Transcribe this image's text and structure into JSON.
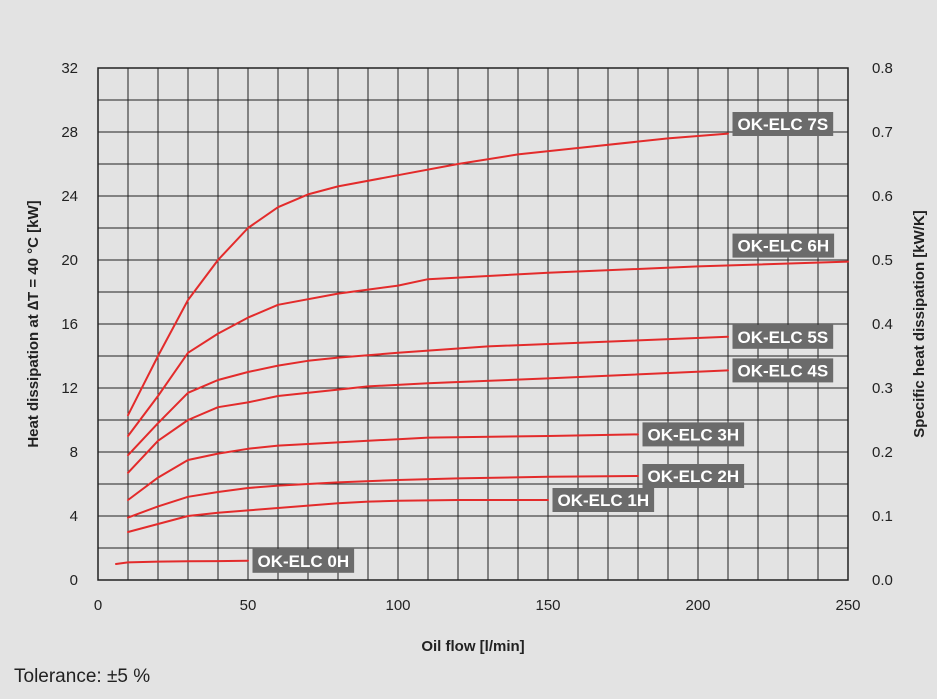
{
  "chart_data": {
    "type": "line",
    "xlabel": "Oil flow [l/min]",
    "ylabel": "Heat dissipation at ∆T = 40 °C [kW]",
    "y2label": "Specific heat dissipation [kW/K]",
    "xlim": [
      0,
      250
    ],
    "ylim": [
      0,
      32
    ],
    "y2lim": [
      0.0,
      0.8
    ],
    "x_ticks": [
      "0",
      "50",
      "100",
      "150",
      "200",
      "250"
    ],
    "y_ticks": [
      "0",
      "4",
      "8",
      "12",
      "16",
      "20",
      "24",
      "28",
      "32"
    ],
    "y2_ticks": [
      "0.0",
      "0.1",
      "0.2",
      "0.3",
      "0.4",
      "0.5",
      "0.6",
      "0.7",
      "0.8"
    ],
    "grid": true,
    "line_color": "#e32b2b",
    "label_bg": "#6b6b6b",
    "series": [
      {
        "name": "OK-ELC 0H",
        "x": [
          6,
          10,
          20,
          30,
          40,
          50
        ],
        "y": [
          1.0,
          1.1,
          1.15,
          1.17,
          1.18,
          1.2
        ]
      },
      {
        "name": "OK-ELC 1H",
        "x": [
          10,
          20,
          30,
          40,
          50,
          60,
          70,
          80,
          90,
          100,
          120,
          150
        ],
        "y": [
          3.0,
          3.5,
          4.0,
          4.2,
          4.35,
          4.5,
          4.65,
          4.8,
          4.9,
          4.95,
          5.0,
          5.0
        ]
      },
      {
        "name": "OK-ELC 2H",
        "x": [
          10,
          20,
          30,
          40,
          50,
          60,
          80,
          100,
          120,
          150,
          180
        ],
        "y": [
          3.9,
          4.6,
          5.2,
          5.5,
          5.75,
          5.9,
          6.1,
          6.25,
          6.35,
          6.45,
          6.5
        ]
      },
      {
        "name": "OK-ELC 3H",
        "x": [
          10,
          20,
          30,
          40,
          50,
          60,
          80,
          100,
          110,
          150,
          180
        ],
        "y": [
          5.0,
          6.4,
          7.5,
          7.9,
          8.2,
          8.4,
          8.6,
          8.8,
          8.9,
          9.0,
          9.1
        ]
      },
      {
        "name": "OK-ELC 4S",
        "x": [
          10,
          20,
          30,
          40,
          50,
          60,
          80,
          90,
          110,
          150,
          210
        ],
        "y": [
          6.7,
          8.7,
          10.0,
          10.8,
          11.1,
          11.5,
          11.9,
          12.1,
          12.3,
          12.6,
          13.1
        ]
      },
      {
        "name": "OK-ELC 5S",
        "x": [
          10,
          20,
          30,
          40,
          50,
          60,
          70,
          80,
          100,
          130,
          170,
          210
        ],
        "y": [
          7.8,
          9.8,
          11.7,
          12.5,
          13.0,
          13.4,
          13.7,
          13.9,
          14.2,
          14.6,
          14.9,
          15.2
        ]
      },
      {
        "name": "OK-ELC 6H",
        "x": [
          10,
          20,
          30,
          40,
          50,
          60,
          80,
          100,
          110,
          130,
          150,
          200,
          250
        ],
        "y": [
          9.0,
          11.5,
          14.2,
          15.4,
          16.4,
          17.2,
          17.9,
          18.4,
          18.8,
          19.0,
          19.2,
          19.6,
          19.9
        ]
      },
      {
        "name": "OK-ELC 7S",
        "x": [
          10,
          20,
          30,
          40,
          50,
          60,
          70,
          80,
          100,
          120,
          140,
          160,
          190,
          210
        ],
        "y": [
          10.3,
          14.0,
          17.5,
          20.0,
          22.0,
          23.3,
          24.1,
          24.6,
          25.3,
          26.0,
          26.6,
          27.0,
          27.6,
          27.9
        ]
      }
    ],
    "label_anchors": [
      {
        "name": "OK-ELC 0H",
        "x": 51.5,
        "y": 1.2
      },
      {
        "name": "OK-ELC 1H",
        "x": 151.5,
        "y": 5.0
      },
      {
        "name": "OK-ELC 2H",
        "x": 181.5,
        "y": 6.5
      },
      {
        "name": "OK-ELC 3H",
        "x": 181.5,
        "y": 9.1
      },
      {
        "name": "OK-ELC 4S",
        "x": 211.5,
        "y": 13.1
      },
      {
        "name": "OK-ELC 5S",
        "x": 211.5,
        "y": 15.2
      },
      {
        "name": "OK-ELC 6H",
        "x": 211.5,
        "y": 20.9
      },
      {
        "name": "OK-ELC 7S",
        "x": 211.5,
        "y": 28.5
      }
    ]
  },
  "footnote": "Tolerance: ±5 %"
}
